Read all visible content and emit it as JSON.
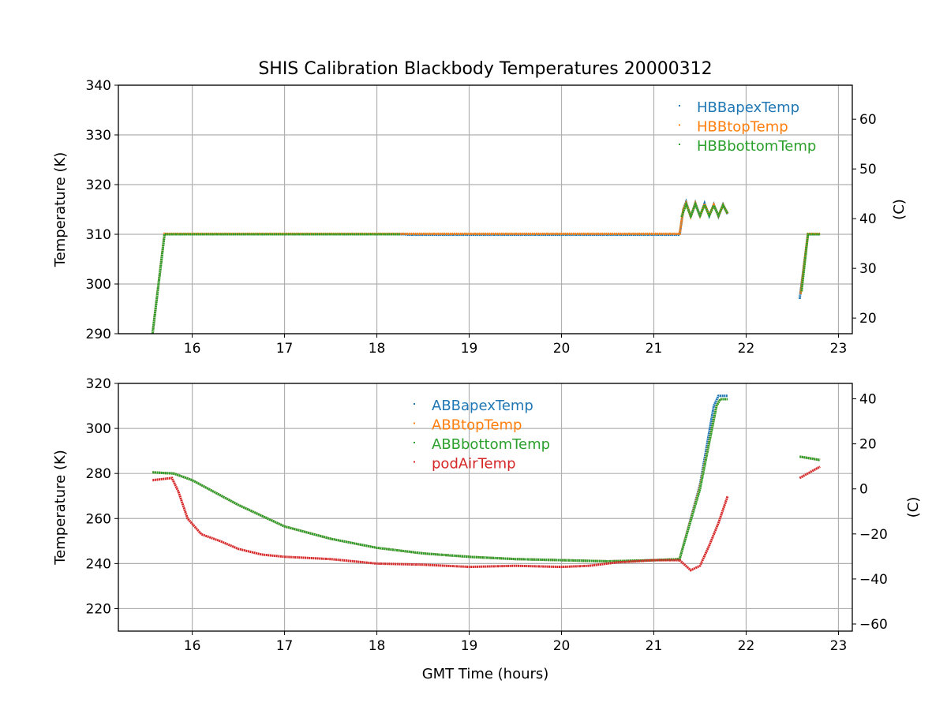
{
  "chart_data": [
    {
      "type": "scatter",
      "title": "SHIS Calibration Blackbody Temperatures 20000312",
      "xlabel": "",
      "ylabel": "Temperature (K)",
      "ylabel_right": "(C)",
      "xlim": [
        15.2,
        23.15
      ],
      "ylim": [
        290,
        340
      ],
      "xticks": [
        16,
        17,
        18,
        19,
        20,
        21,
        22,
        23
      ],
      "yticks": [
        290,
        300,
        310,
        320,
        330,
        340
      ],
      "yticks_right": [
        20,
        30,
        40,
        50,
        60
      ],
      "grid": true,
      "legend_position": "top-right",
      "series": [
        {
          "name": "HBBapexTemp",
          "color": "#1f77b4",
          "segments": [
            [
              [
                15.57,
                290
              ],
              [
                15.7,
                310
              ],
              [
                18.3,
                310
              ],
              [
                18.35,
                309.9
              ],
              [
                21.28,
                309.9
              ],
              [
                21.32,
                315
              ],
              [
                21.35,
                316.5
              ],
              [
                21.4,
                313.5
              ],
              [
                21.45,
                316.3
              ],
              [
                21.5,
                313.6
              ],
              [
                21.55,
                316.2
              ],
              [
                21.6,
                313.7
              ],
              [
                21.65,
                316
              ],
              [
                21.7,
                313.6
              ],
              [
                21.75,
                316
              ],
              [
                21.8,
                314
              ]
            ],
            [
              [
                22.58,
                297
              ],
              [
                22.67,
                310
              ],
              [
                22.8,
                310
              ]
            ]
          ]
        },
        {
          "name": "HBBtopTemp",
          "color": "#ff7f0e",
          "segments": [
            [
              [
                15.57,
                290
              ],
              [
                15.7,
                310.1
              ],
              [
                21.28,
                310.1
              ],
              [
                21.32,
                315
              ],
              [
                21.35,
                316.3
              ],
              [
                21.4,
                313.6
              ],
              [
                21.45,
                316.2
              ],
              [
                21.5,
                313.7
              ],
              [
                21.55,
                316.1
              ],
              [
                21.6,
                313.8
              ],
              [
                21.65,
                315.9
              ],
              [
                21.7,
                313.7
              ],
              [
                21.75,
                315.9
              ],
              [
                21.8,
                314.1
              ]
            ],
            [
              [
                22.59,
                298
              ],
              [
                22.67,
                310.1
              ],
              [
                22.8,
                310.1
              ]
            ]
          ]
        },
        {
          "name": "HBBbottomTemp",
          "color": "#2ca02c",
          "segments": [
            [
              [
                15.57,
                290
              ],
              [
                15.7,
                310
              ],
              [
                18.25,
                310
              ]
            ],
            [
              [
                21.3,
                313.5
              ],
              [
                21.35,
                316
              ],
              [
                21.4,
                313.7
              ],
              [
                21.45,
                316
              ],
              [
                21.5,
                313.8
              ],
              [
                21.55,
                315.9
              ],
              [
                21.6,
                313.8
              ],
              [
                21.65,
                315.8
              ],
              [
                21.7,
                313.8
              ],
              [
                21.75,
                315.8
              ],
              [
                21.8,
                314.2
              ]
            ],
            [
              [
                22.6,
                298.5
              ],
              [
                22.67,
                310
              ],
              [
                22.8,
                310
              ]
            ]
          ]
        }
      ]
    },
    {
      "type": "scatter",
      "title": "",
      "xlabel": "GMT Time (hours)",
      "ylabel": "Temperature (K)",
      "ylabel_right": "(C)",
      "xlim": [
        15.2,
        23.15
      ],
      "ylim": [
        210,
        320
      ],
      "xticks": [
        16,
        17,
        18,
        19,
        20,
        21,
        22,
        23
      ],
      "yticks": [
        220,
        240,
        260,
        280,
        300,
        320
      ],
      "yticks_right": [
        -60,
        -40,
        -20,
        0,
        20,
        40
      ],
      "grid": true,
      "legend_position": "top-center",
      "series": [
        {
          "name": "ABBapexTemp",
          "color": "#1f77b4",
          "segments": [
            [
              [
                15.57,
                280.5
              ],
              [
                15.8,
                280
              ],
              [
                16,
                277
              ],
              [
                16.5,
                266
              ],
              [
                17,
                256.5
              ],
              [
                17.5,
                251
              ],
              [
                18,
                247
              ],
              [
                18.5,
                244.5
              ],
              [
                19,
                243
              ],
              [
                19.5,
                242
              ],
              [
                20,
                241.5
              ],
              [
                20.5,
                241
              ],
              [
                21,
                241.5
              ],
              [
                21.28,
                242
              ],
              [
                21.3,
                245
              ],
              [
                21.5,
                275
              ],
              [
                21.65,
                310
              ],
              [
                21.7,
                314.5
              ],
              [
                21.8,
                314.5
              ]
            ],
            [
              [
                22.58,
                287.5
              ],
              [
                22.8,
                286
              ]
            ]
          ]
        },
        {
          "name": "ABBtopTemp",
          "color": "#ff7f0e",
          "segments": [
            [
              [
                15.57,
                280.5
              ],
              [
                15.8,
                280
              ],
              [
                16,
                277
              ],
              [
                16.5,
                266
              ],
              [
                17,
                256.5
              ],
              [
                17.5,
                251
              ],
              [
                18,
                247
              ],
              [
                18.5,
                244.5
              ],
              [
                19,
                243
              ],
              [
                19.5,
                242
              ],
              [
                20,
                241.5
              ],
              [
                20.5,
                241
              ],
              [
                21,
                241.5
              ],
              [
                21.28,
                242
              ],
              [
                21.3,
                245
              ],
              [
                21.5,
                274
              ],
              [
                21.68,
                310
              ],
              [
                21.72,
                313
              ],
              [
                21.8,
                313
              ]
            ],
            [
              [
                22.58,
                287.5
              ],
              [
                22.8,
                286
              ]
            ]
          ]
        },
        {
          "name": "ABBbottomTemp",
          "color": "#2ca02c",
          "segments": [
            [
              [
                15.57,
                280.5
              ],
              [
                15.8,
                280
              ],
              [
                16,
                277
              ],
              [
                16.5,
                266
              ],
              [
                17,
                256.5
              ],
              [
                17.5,
                251
              ],
              [
                18,
                247
              ],
              [
                18.5,
                244.5
              ],
              [
                19,
                243
              ],
              [
                19.5,
                242
              ],
              [
                20,
                241.5
              ],
              [
                20.5,
                241
              ],
              [
                21,
                241.5
              ],
              [
                21.28,
                242
              ],
              [
                21.3,
                245
              ],
              [
                21.5,
                273
              ],
              [
                21.68,
                310
              ],
              [
                21.72,
                313
              ],
              [
                21.8,
                313
              ]
            ],
            [
              [
                22.58,
                287.5
              ],
              [
                22.8,
                286
              ]
            ]
          ]
        },
        {
          "name": "podAirTemp",
          "color": "#d62728",
          "segments": [
            [
              [
                15.57,
                277
              ],
              [
                15.78,
                278
              ],
              [
                15.85,
                272
              ],
              [
                15.95,
                260
              ],
              [
                16.1,
                253
              ],
              [
                16.3,
                250
              ],
              [
                16.5,
                246.5
              ],
              [
                16.75,
                244
              ],
              [
                17,
                243
              ],
              [
                17.5,
                242
              ],
              [
                18,
                240
              ],
              [
                18.5,
                239.5
              ],
              [
                19,
                238.5
              ],
              [
                19.5,
                239
              ],
              [
                20,
                238.5
              ],
              [
                20.3,
                239
              ],
              [
                20.6,
                240.5
              ],
              [
                21,
                241.5
              ],
              [
                21.28,
                241.5
              ],
              [
                21.4,
                237
              ],
              [
                21.5,
                239
              ],
              [
                21.6,
                248
              ],
              [
                21.7,
                258
              ],
              [
                21.8,
                270
              ]
            ],
            [
              [
                22.58,
                278
              ],
              [
                22.8,
                283
              ]
            ]
          ]
        }
      ]
    }
  ]
}
